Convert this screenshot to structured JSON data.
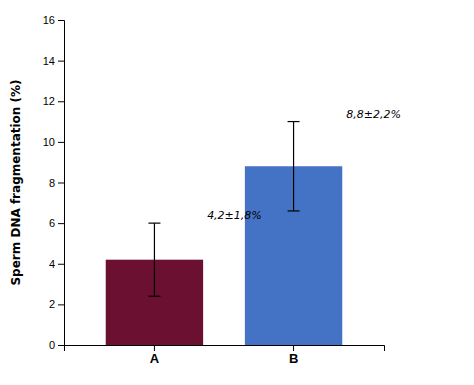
{
  "chart_data": {
    "type": "bar",
    "categories": [
      "A",
      "B"
    ],
    "values": [
      4.2,
      8.8
    ],
    "errors": [
      1.8,
      2.2
    ],
    "colors": [
      "#6B1030",
      "#4472C4"
    ],
    "annotations": [
      "4,2±1,8%",
      "8,8±2,2%"
    ],
    "ylabel": "Sperm DNA fragmentation (%)",
    "ylim": [
      0,
      16
    ],
    "yticks": [
      0,
      2,
      4,
      6,
      8,
      10,
      12,
      14,
      16
    ],
    "grid": false
  }
}
